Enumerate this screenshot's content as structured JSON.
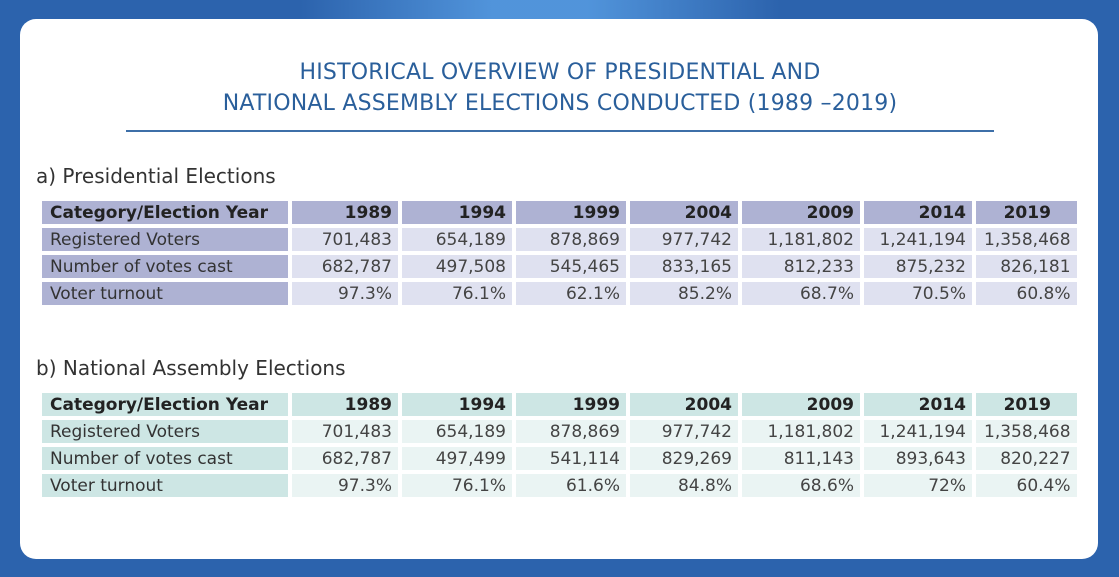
{
  "title": {
    "line1": "HISTORICAL OVERVIEW OF PRESIDENTIAL AND",
    "line2": "NATIONAL ASSEMBLY ELECTIONS CONDUCTED (1989 –2019)"
  },
  "presidential": {
    "heading": "a)  Presidential Elections",
    "header": [
      "Category/Election Year",
      "1989",
      "1994",
      "1999",
      "2004",
      "2009",
      "2014",
      "2019"
    ],
    "rows": [
      [
        "Registered Voters",
        "701,483",
        "654,189",
        "878,869",
        "977,742",
        "1,181,802",
        "1,241,194",
        "1,358,468"
      ],
      [
        "Number of votes cast",
        "682,787",
        "497,508",
        "545,465",
        "833,165",
        "812,233",
        "875,232",
        "826,181"
      ],
      [
        "Voter turnout",
        "97.3%",
        "76.1%",
        "62.1%",
        "85.2%",
        "68.7%",
        "70.5%",
        "60.8%"
      ]
    ]
  },
  "national_assembly": {
    "heading": "b)  National Assembly Elections",
    "header": [
      "Category/Election Year",
      "1989",
      "1994",
      "1999",
      "2004",
      "2009",
      "2014",
      "2019"
    ],
    "rows": [
      [
        "Registered Voters",
        "701,483",
        "654,189",
        "878,869",
        "977,742",
        "1,181,802",
        "1,241,194",
        "1,358,468"
      ],
      [
        "Number of votes cast",
        "682,787",
        "497,499",
        "541,114",
        "829,269",
        "811,143",
        "893,643",
        "820,227"
      ],
      [
        "Voter turnout",
        "97.3%",
        "76.1%",
        "61.6%",
        "84.8%",
        "68.6%",
        "72%",
        "60.4%"
      ]
    ]
  }
}
